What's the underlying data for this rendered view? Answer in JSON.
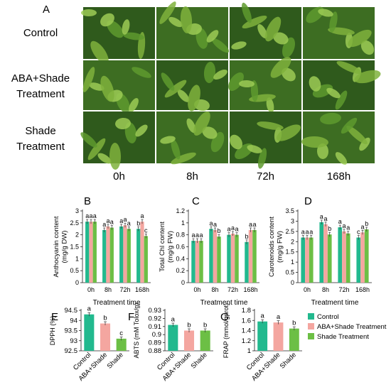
{
  "panel_a": {
    "letter": "A",
    "row_labels": [
      [
        "Control"
      ],
      [
        "ABA+Shade",
        "Treatment"
      ],
      [
        "Shade",
        "Treatment"
      ]
    ],
    "col_labels": [
      "0h",
      "8h",
      "72h",
      "168h"
    ]
  },
  "legend": [
    "Control",
    "ABA+Shade Treatment",
    "Shade Treatment"
  ],
  "colors": {
    "control": "#22b98e",
    "aba_shade": "#f4a6a0",
    "shade": "#6cbf45",
    "photo_dark": "#2f5a1c",
    "photo_mid": "#5e9a2e",
    "photo_light": "#9ccb55"
  },
  "chart_data": [
    {
      "id": "B",
      "type": "bar",
      "ylabel": [
        "Anthocyanin content",
        "(mg/g DW)"
      ],
      "xlabel": "Treatment time",
      "categories": [
        "0h",
        "8h",
        "72h",
        "168h"
      ],
      "ylim": [
        0,
        3
      ],
      "yticks": [
        0,
        0.5,
        1,
        1.5,
        2,
        2.5,
        3
      ],
      "series": [
        {
          "name": "Control",
          "values": [
            2.55,
            2.2,
            2.35,
            2.25
          ]
        },
        {
          "name": "ABA+Shade Treatment",
          "values": [
            2.55,
            2.35,
            2.4,
            2.55
          ]
        },
        {
          "name": "Shade Treatment",
          "values": [
            2.55,
            2.3,
            2.25,
            1.95
          ]
        }
      ],
      "letters": [
        [
          "a",
          "a",
          "a"
        ],
        [
          "a",
          "a",
          "a"
        ],
        [
          "a",
          "a",
          "a"
        ],
        [
          "b",
          "a",
          "c"
        ]
      ]
    },
    {
      "id": "C",
      "type": "bar",
      "ylabel": [
        "Total Chl content",
        "(mg/g FW)"
      ],
      "xlabel": "Treatment time",
      "categories": [
        "0h",
        "8h",
        "72h",
        "168h"
      ],
      "ylim": [
        0,
        1.2
      ],
      "yticks": [
        0,
        0.2,
        0.4,
        0.6,
        0.8,
        1,
        1.2
      ],
      "series": [
        {
          "name": "Control",
          "values": [
            0.7,
            0.9,
            0.8,
            0.68
          ]
        },
        {
          "name": "ABA+Shade Treatment",
          "values": [
            0.7,
            0.88,
            0.82,
            0.88
          ]
        },
        {
          "name": "Shade Treatment",
          "values": [
            0.7,
            0.77,
            0.8,
            0.88
          ]
        }
      ],
      "letters": [
        [
          "a",
          "a",
          "a"
        ],
        [
          "a",
          "a",
          "b"
        ],
        [
          "a",
          "a",
          "a"
        ],
        [
          "b",
          "a",
          "a"
        ]
      ]
    },
    {
      "id": "D",
      "type": "bar",
      "ylabel": [
        "Carotenoids content",
        "(mg/g FW)"
      ],
      "xlabel": "Treatment time",
      "categories": [
        "0h",
        "8h",
        "72h",
        "168h"
      ],
      "ylim": [
        0,
        3.5
      ],
      "yticks": [
        0,
        0.5,
        1,
        1.5,
        2,
        2.5,
        3,
        3.5
      ],
      "series": [
        {
          "name": "Control",
          "values": [
            2.2,
            2.95,
            2.7,
            2.2
          ]
        },
        {
          "name": "ABA+Shade Treatment",
          "values": [
            2.2,
            2.85,
            2.5,
            2.45
          ]
        },
        {
          "name": "Shade Treatment",
          "values": [
            2.2,
            2.35,
            2.4,
            2.6
          ]
        }
      ],
      "letters": [
        [
          "a",
          "a",
          "a"
        ],
        [
          "a",
          "a",
          "b"
        ],
        [
          "a",
          "a",
          "a"
        ],
        [
          "c",
          "a",
          "b"
        ]
      ]
    },
    {
      "id": "E",
      "type": "bar",
      "ylabel": [
        "DPPH (%)"
      ],
      "categories": [
        "Control",
        "ABA+Shade",
        "Shade"
      ],
      "ylim": [
        92.5,
        94.5
      ],
      "yticks": [
        92.5,
        93,
        93.5,
        94,
        94.5
      ],
      "values": [
        94.3,
        93.85,
        93.1
      ],
      "letters": [
        "a",
        "b",
        "c"
      ]
    },
    {
      "id": "F",
      "type": "bar",
      "ylabel": [
        "ABTS (mM Tolox/g)"
      ],
      "categories": [
        "Control",
        "ABA+Shade",
        "Shade"
      ],
      "ylim": [
        0.88,
        0.93
      ],
      "yticks": [
        0.88,
        0.89,
        0.9,
        0.91,
        0.92,
        0.93
      ],
      "values": [
        0.912,
        0.905,
        0.905
      ],
      "letters": [
        "a",
        "b",
        "b"
      ]
    },
    {
      "id": "G",
      "type": "bar",
      "ylabel": [
        "FRAP (mmol/gprot)"
      ],
      "categories": [
        "Control",
        "ABA+Shade",
        "Shade"
      ],
      "ylim": [
        1,
        1.8
      ],
      "yticks": [
        1,
        1.2,
        1.4,
        1.6,
        1.8
      ],
      "values": [
        1.58,
        1.56,
        1.44
      ],
      "letters": [
        "a",
        "a",
        "b"
      ]
    }
  ]
}
